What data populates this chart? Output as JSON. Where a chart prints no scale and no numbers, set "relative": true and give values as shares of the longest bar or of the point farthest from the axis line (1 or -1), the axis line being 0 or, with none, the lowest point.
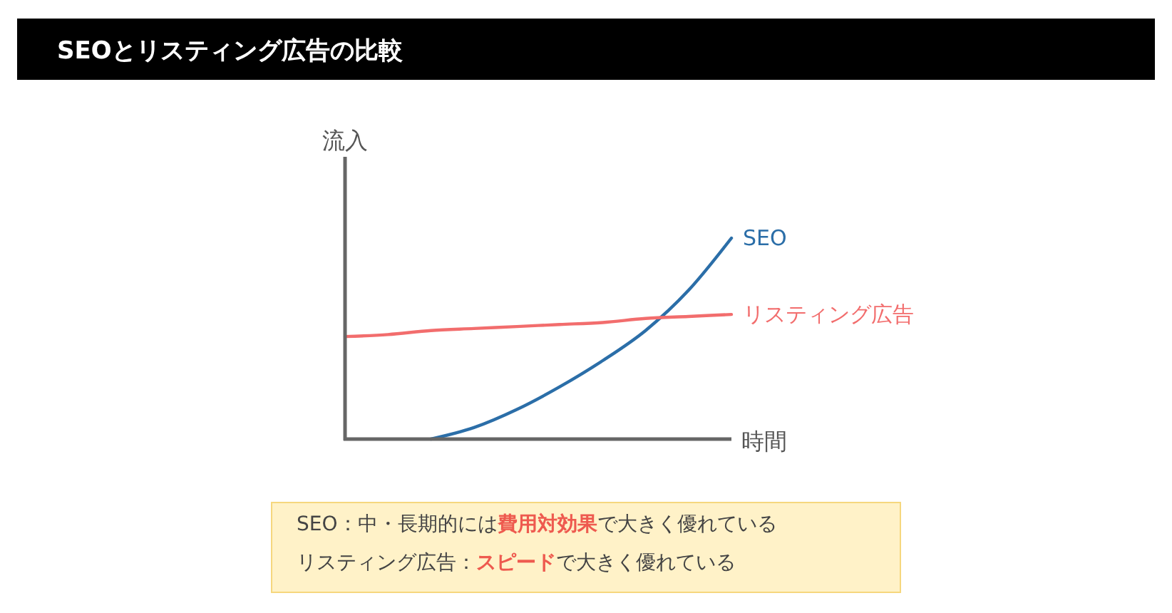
{
  "chart_data": {
    "type": "line",
    "title": "SEOとリスティング広告の比較",
    "xlabel": "時間",
    "ylabel": "流入",
    "relative": true,
    "categories": [
      null,
      null,
      null,
      null,
      null,
      null,
      null,
      null,
      null,
      null
    ],
    "series": [
      {
        "name": "SEO",
        "color": "#2b6ea8",
        "values": [
          null,
          null,
          0,
          0.057,
          0.147,
          0.26,
          0.39,
          0.54,
          0.74,
          1
        ]
      },
      {
        "name": "リスティング広告",
        "color": "#f26d6d",
        "values": [
          0.51,
          0.52,
          0.54,
          0.55,
          0.56,
          0.57,
          0.58,
          0.6,
          0.61,
          0.62
        ]
      }
    ],
    "annotations": [
      "SEO：中・長期的には費用対効果で大きく優れている",
      "リスティング広告：スピードで大きく優れている"
    ]
  }
}
